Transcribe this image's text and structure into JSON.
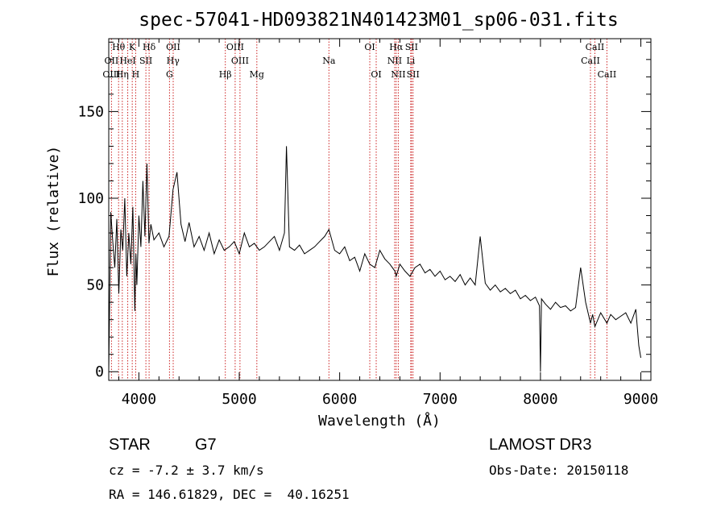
{
  "chart_data": {
    "type": "line",
    "title": "spec-57041-HD093821N401423M01_sp06-031.fits",
    "xlabel": "Wavelength (Å)",
    "ylabel": "Flux (relative)",
    "xlim": [
      3700,
      9100
    ],
    "ylim": [
      -5,
      192
    ],
    "xticks": [
      4000,
      5000,
      6000,
      7000,
      8000,
      9000
    ],
    "yticks": [
      0,
      50,
      100,
      150
    ],
    "series": [
      {
        "name": "flux",
        "x": [
          3700,
          3720,
          3740,
          3760,
          3780,
          3800,
          3820,
          3840,
          3860,
          3880,
          3900,
          3920,
          3940,
          3960,
          3970,
          3980,
          4000,
          4020,
          4040,
          4060,
          4080,
          4100,
          4120,
          4150,
          4200,
          4250,
          4300,
          4340,
          4380,
          4420,
          4460,
          4500,
          4550,
          4600,
          4650,
          4700,
          4750,
          4800,
          4850,
          4900,
          4950,
          5000,
          5050,
          5100,
          5150,
          5200,
          5250,
          5300,
          5350,
          5400,
          5450,
          5470,
          5500,
          5550,
          5600,
          5650,
          5700,
          5750,
          5800,
          5850,
          5893,
          5950,
          6000,
          6050,
          6100,
          6150,
          6200,
          6250,
          6300,
          6350,
          6400,
          6450,
          6500,
          6550,
          6563,
          6600,
          6650,
          6700,
          6750,
          6800,
          6850,
          6900,
          6950,
          7000,
          7050,
          7100,
          7150,
          7200,
          7250,
          7300,
          7350,
          7400,
          7450,
          7500,
          7550,
          7600,
          7650,
          7700,
          7750,
          7800,
          7850,
          7900,
          7950,
          7990,
          8000,
          8010,
          8050,
          8100,
          8150,
          8200,
          8250,
          8300,
          8350,
          8400,
          8450,
          8498,
          8520,
          8542,
          8600,
          8662,
          8700,
          8750,
          8800,
          8850,
          8900,
          8950,
          8980,
          9000
        ],
        "values": [
          0,
          92,
          75,
          60,
          88,
          45,
          82,
          70,
          100,
          55,
          80,
          62,
          95,
          35,
          68,
          50,
          90,
          72,
          110,
          78,
          120,
          74,
          85,
          76,
          80,
          72,
          78,
          105,
          115,
          85,
          75,
          86,
          72,
          78,
          70,
          80,
          68,
          76,
          70,
          72,
          75,
          68,
          80,
          72,
          74,
          70,
          72,
          75,
          78,
          70,
          80,
          130,
          72,
          70,
          73,
          68,
          70,
          72,
          75,
          78,
          82,
          70,
          68,
          72,
          64,
          66,
          58,
          68,
          62,
          60,
          70,
          65,
          62,
          58,
          55,
          62,
          58,
          55,
          60,
          62,
          57,
          59,
          55,
          58,
          53,
          55,
          52,
          56,
          50,
          54,
          50,
          78,
          51,
          47,
          50,
          46,
          48,
          45,
          47,
          42,
          44,
          41,
          43,
          38,
          0,
          42,
          39,
          36,
          40,
          37,
          38,
          35,
          37,
          60,
          40,
          28,
          33,
          26,
          34,
          28,
          33,
          30,
          32,
          34,
          28,
          36,
          15,
          8
        ]
      }
    ],
    "spectral_lines": [
      {
        "label": "Hθ",
        "wavelength": 3798,
        "row": 1
      },
      {
        "label": "OII",
        "wavelength": 3727,
        "row": 2
      },
      {
        "label": "OIII",
        "wavelength": 3727,
        "row": 3
      },
      {
        "label": "K",
        "wavelength": 3934,
        "row": 1
      },
      {
        "label": "HeI",
        "wavelength": 3889,
        "row": 2
      },
      {
        "label": "Hη",
        "wavelength": 3835,
        "row": 3
      },
      {
        "label": "Hδ",
        "wavelength": 4102,
        "row": 1
      },
      {
        "label": "SII",
        "wavelength": 4070,
        "row": 2
      },
      {
        "label": "H",
        "wavelength": 3968,
        "row": 3
      },
      {
        "label": "OII",
        "wavelength": 4342,
        "row": 1
      },
      {
        "label": "Hγ",
        "wavelength": 4340,
        "row": 2
      },
      {
        "label": "G",
        "wavelength": 4305,
        "row": 3
      },
      {
        "label": "Hβ",
        "wavelength": 4861,
        "row": 3
      },
      {
        "label": "OIII",
        "wavelength": 4959,
        "row": 1
      },
      {
        "label": "OIII",
        "wavelength": 5007,
        "row": 2
      },
      {
        "label": "Mg",
        "wavelength": 5175,
        "row": 3
      },
      {
        "label": "Na",
        "wavelength": 5893,
        "row": 2
      },
      {
        "label": "OI",
        "wavelength": 6300,
        "row": 1
      },
      {
        "label": "OI",
        "wavelength": 6364,
        "row": 3
      },
      {
        "label": "Hα",
        "wavelength": 6563,
        "row": 1
      },
      {
        "label": "SII",
        "wavelength": 6716,
        "row": 1
      },
      {
        "label": "NII",
        "wavelength": 6548,
        "row": 2
      },
      {
        "label": "Li",
        "wavelength": 6708,
        "row": 2
      },
      {
        "label": "NII",
        "wavelength": 6584,
        "row": 3
      },
      {
        "label": "SII",
        "wavelength": 6731,
        "row": 3
      },
      {
        "label": "CaII",
        "wavelength": 8542,
        "row": 1
      },
      {
        "label": "CaII",
        "wavelength": 8498,
        "row": 2
      },
      {
        "label": "CaII",
        "wavelength": 8662,
        "row": 3
      }
    ]
  },
  "info": {
    "object_class": "STAR",
    "subclass": "G7",
    "survey": "LAMOST DR3",
    "redshift": "cz = -7.2 ± 3.7 km/s",
    "obs_date": "Obs-Date: 20150118",
    "coords": "RA = 146.61829, DEC =  40.16251"
  },
  "colors": {
    "line_marker": "#cc2222",
    "spectrum": "#000000"
  }
}
